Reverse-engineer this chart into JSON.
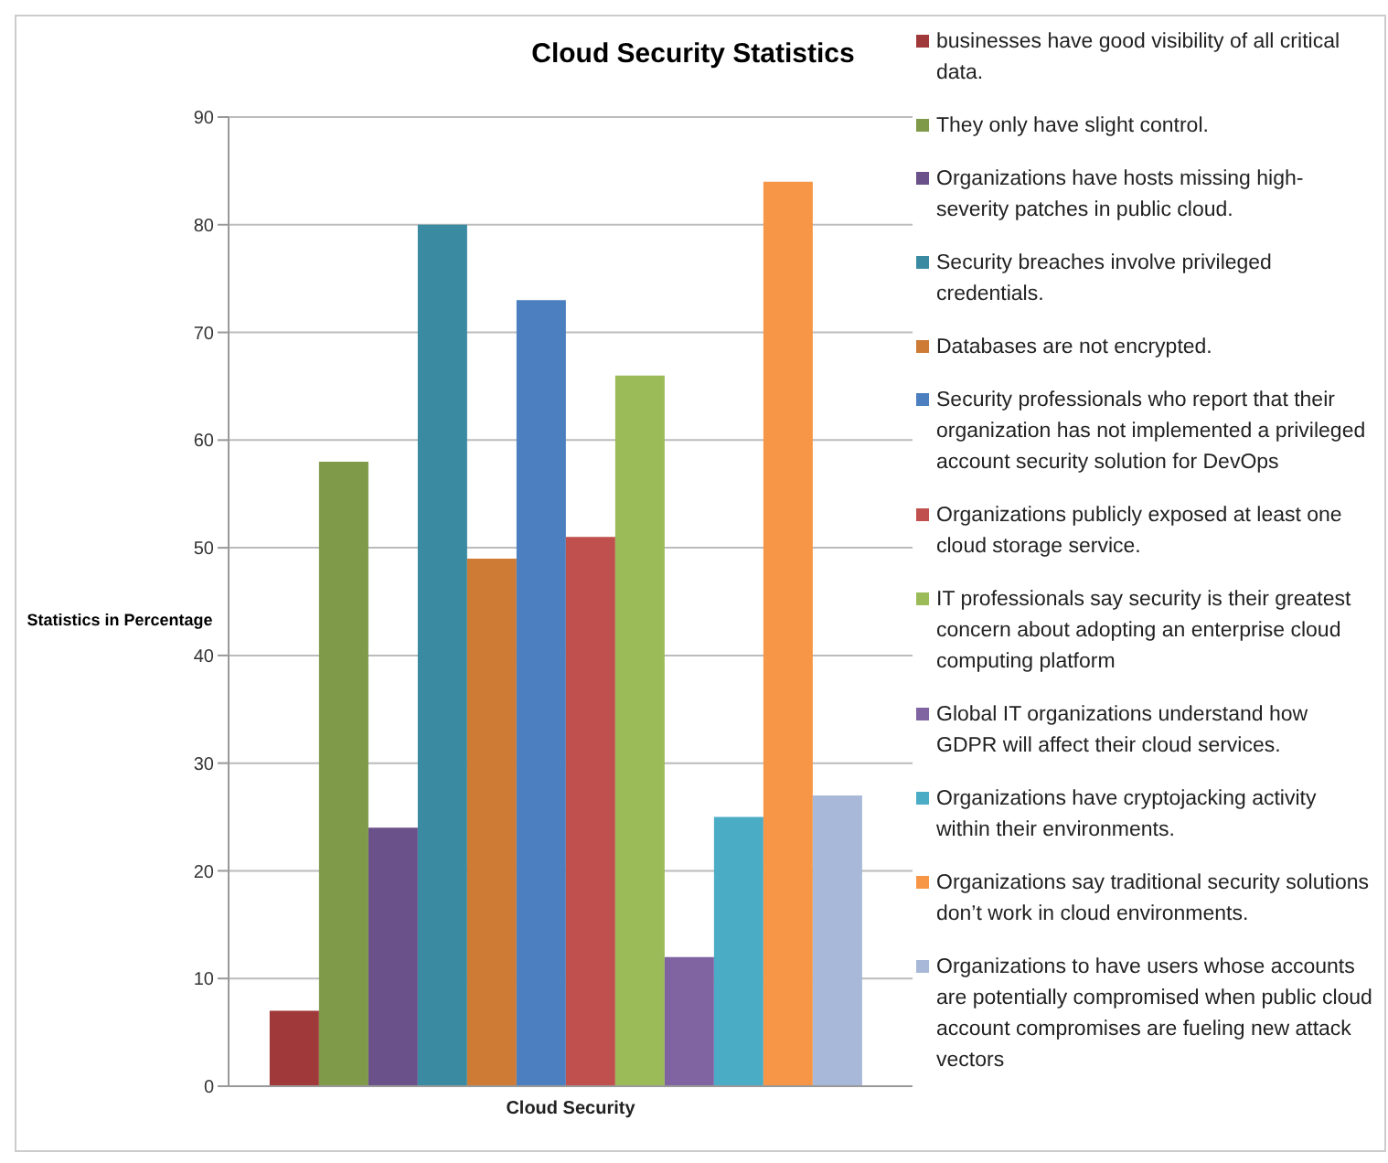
{
  "chart_data": {
    "type": "bar",
    "title": "Cloud Security Statistics",
    "ylabel": "Statistics in Percentage",
    "categories": [
      "Cloud Security"
    ],
    "series": [
      {
        "name": "businesses  have good visibility of all critical data.",
        "color": "#a0393a",
        "values": [
          7
        ]
      },
      {
        "name": "They only have slight control.",
        "color": "#7f9a48",
        "values": [
          58
        ]
      },
      {
        "name": "Organizations have hosts missing high-severity patches in public cloud.",
        "color": "#6b518a",
        "values": [
          24
        ]
      },
      {
        "name": "Security breaches involve privileged credentials.",
        "color": "#3a8ba2",
        "values": [
          80
        ]
      },
      {
        "name": "Databases are not encrypted.",
        "color": "#cd7b35",
        "values": [
          49
        ]
      },
      {
        "name": "Security professionals who report that their organization has not implemented a privileged account security solution for DevOps",
        "color": "#4b7fbf",
        "values": [
          73
        ]
      },
      {
        "name": "Organizations publicly exposed at least one cloud storage service.",
        "color": "#c0504d",
        "values": [
          51
        ]
      },
      {
        "name": "IT professionals say security is their greatest concern about adopting an enterprise cloud computing platform",
        "color": "#9bbb59",
        "values": [
          66
        ]
      },
      {
        "name": "Global IT organizations understand how GDPR will affect their cloud services.",
        "color": "#8064a2",
        "values": [
          12
        ]
      },
      {
        "name": "Organizations have cryptojacking activity within their environments.",
        "color": "#4bacc6",
        "values": [
          25
        ]
      },
      {
        "name": "Organizations say traditional security solutions don’t work in cloud environments.",
        "color": "#f79646",
        "values": [
          84
        ]
      },
      {
        "name": "Organizations to have users whose accounts are potentially compromised when public cloud account compromises are fueling new attack vectors",
        "color": "#a8b8d8",
        "values": [
          27
        ]
      }
    ],
    "ylim": [
      0,
      90
    ],
    "yticks": [
      0,
      10,
      20,
      30,
      40,
      50,
      60,
      70,
      80,
      90
    ],
    "grid": "y",
    "legend": "right"
  }
}
